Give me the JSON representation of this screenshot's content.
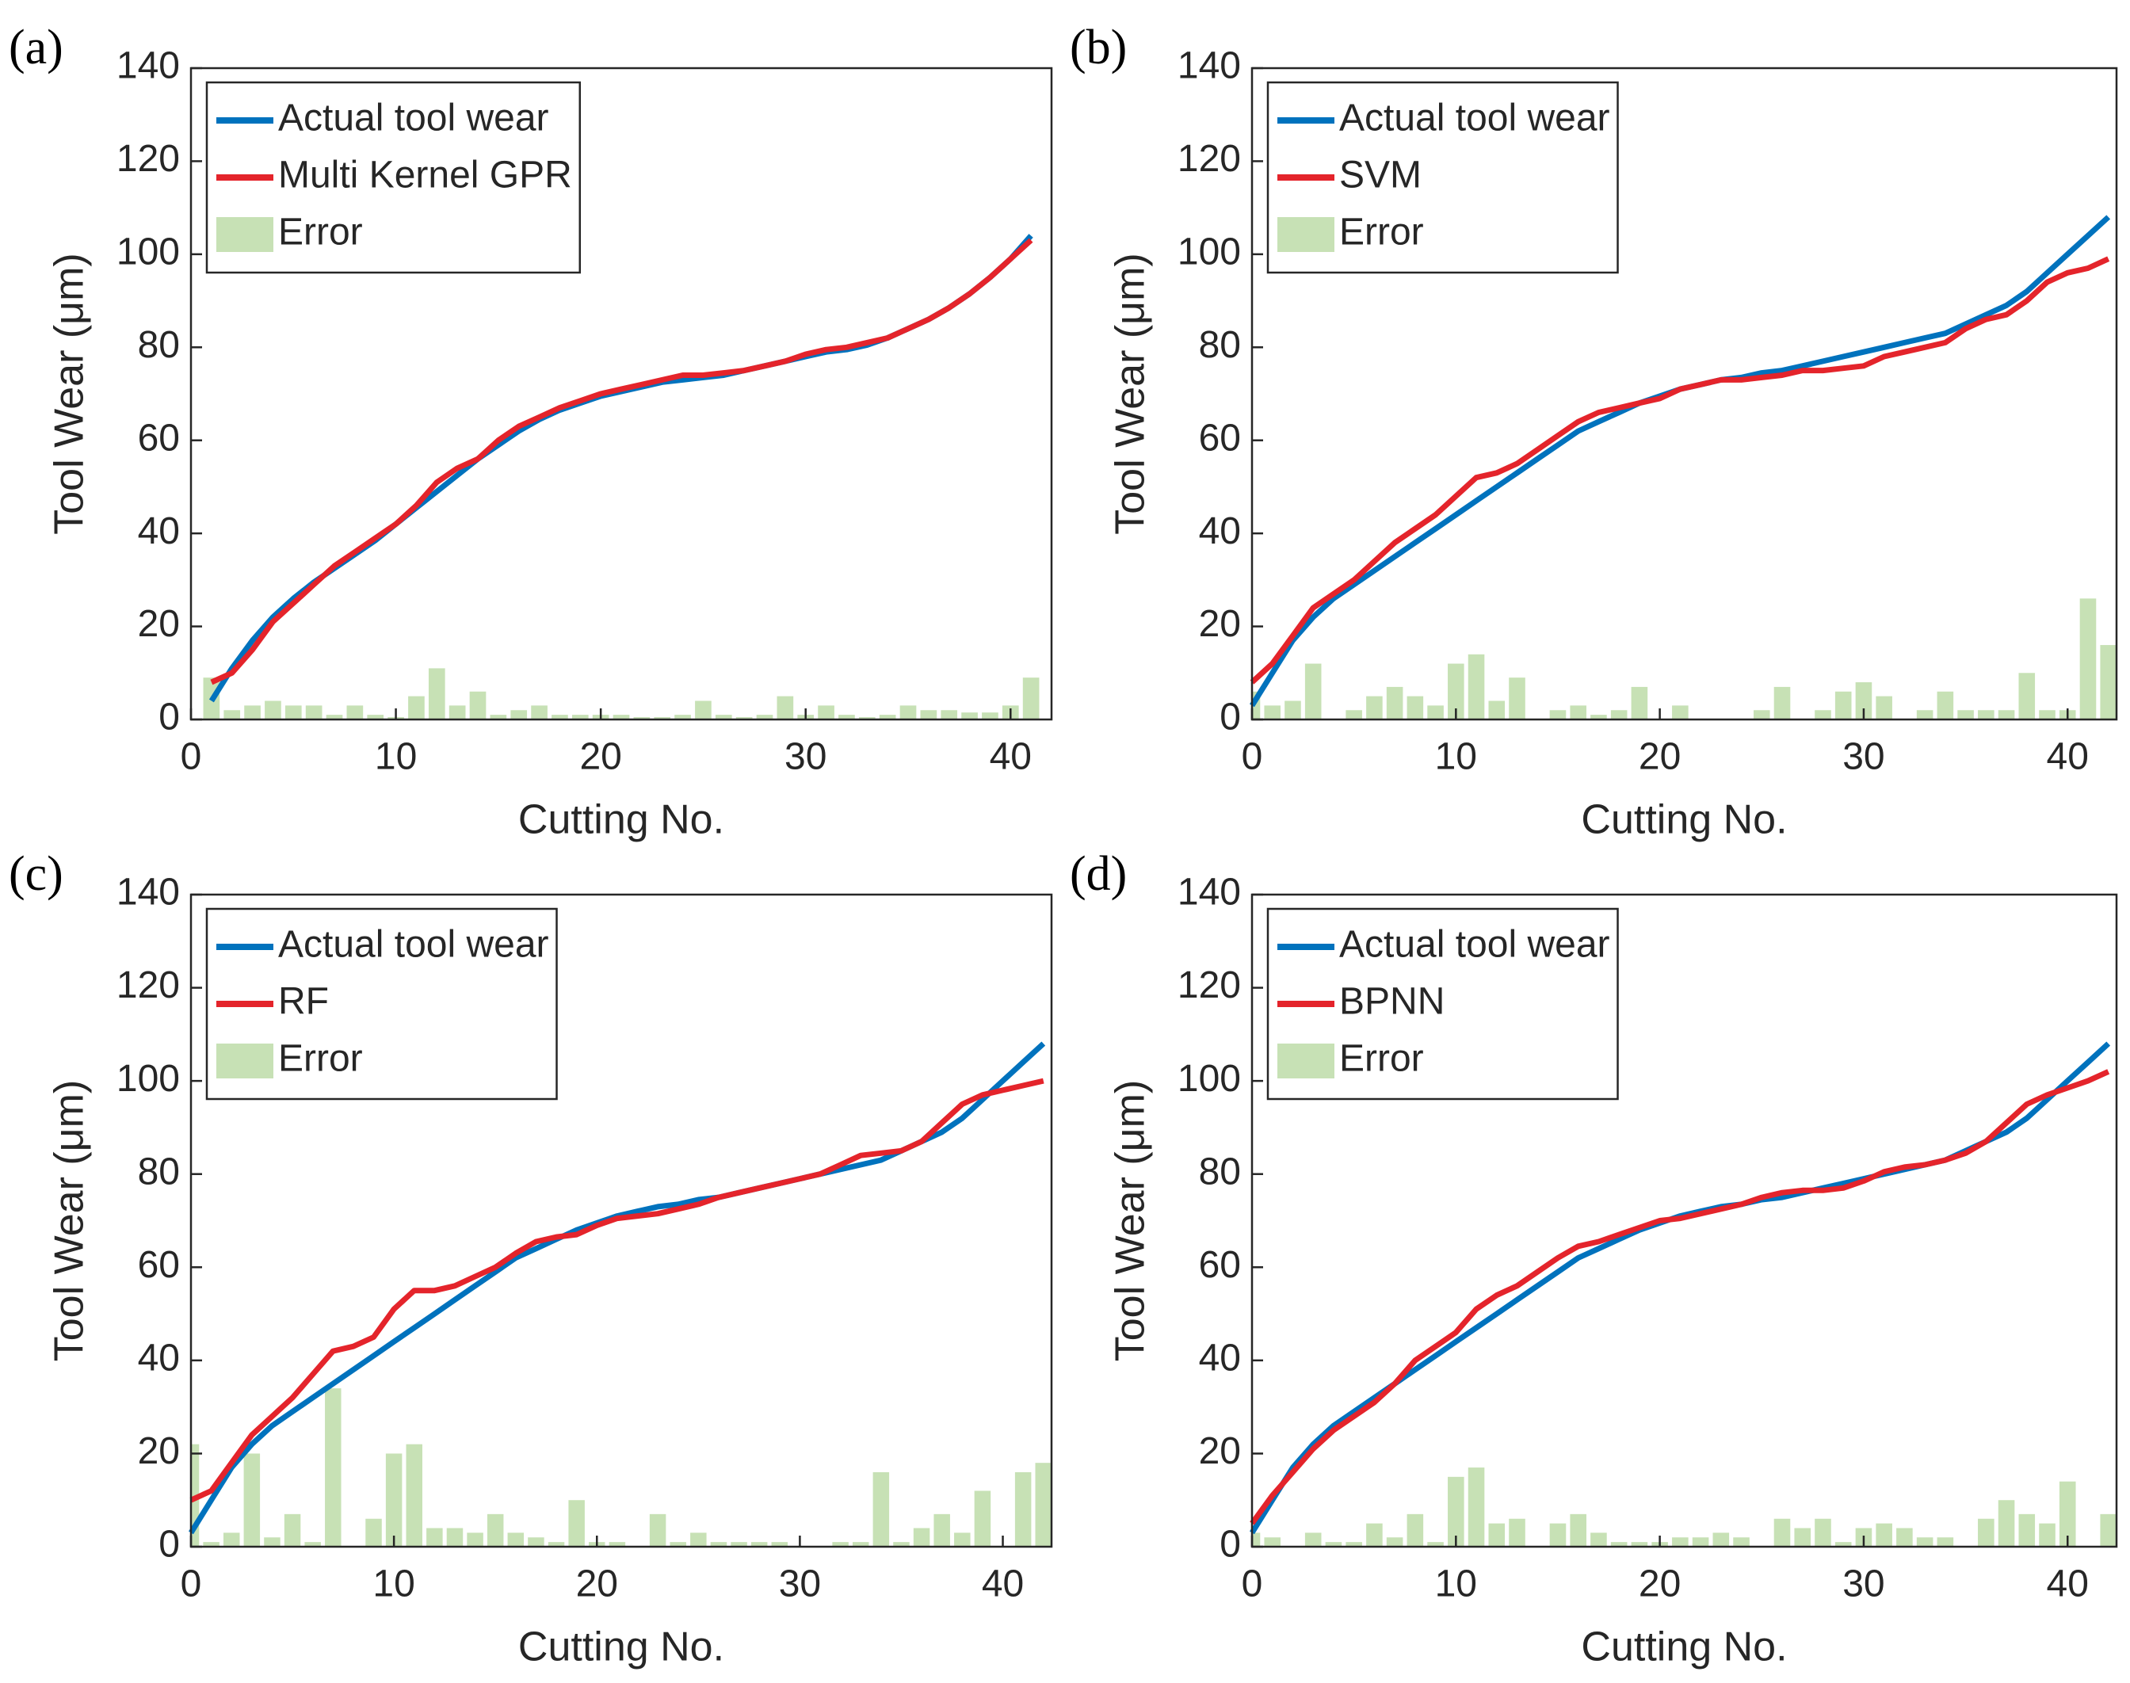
{
  "chart_data": [
    {
      "type": "combo",
      "panel": "(a)",
      "xlabel": "Cutting No.",
      "ylabel": "Tool Wear (μm)",
      "xlim": [
        0,
        42
      ],
      "ylim": [
        0,
        140
      ],
      "xticks": [
        0,
        10,
        20,
        30,
        40
      ],
      "yticks": [
        0,
        20,
        40,
        60,
        80,
        100,
        120,
        140
      ],
      "legend": "northwest",
      "x": [
        1,
        2,
        3,
        4,
        5,
        6,
        7,
        8,
        9,
        10,
        11,
        12,
        13,
        14,
        15,
        16,
        17,
        18,
        19,
        20,
        21,
        22,
        23,
        24,
        25,
        26,
        27,
        28,
        29,
        30,
        31,
        32,
        33,
        34,
        35,
        36,
        37,
        38,
        39,
        40,
        41
      ],
      "series": [
        {
          "name": "Actual tool wear",
          "color": "#0072bd",
          "kind": "line",
          "values": [
            4,
            11,
            17,
            22,
            26,
            29.5,
            32.5,
            35.5,
            38.5,
            42,
            45.5,
            49,
            52.5,
            56,
            59,
            62,
            64.5,
            66.5,
            68,
            69.5,
            70.5,
            71.5,
            72.5,
            73,
            73.5,
            74,
            75,
            76,
            77,
            78,
            79,
            79.5,
            80.5,
            82,
            84,
            86,
            88.5,
            91.5,
            95,
            99,
            104
          ]
        },
        {
          "name": "Multi Kernel GPR",
          "color": "#e4242b",
          "kind": "line",
          "values": [
            8,
            10,
            15,
            21,
            25,
            29,
            33,
            36,
            39,
            42,
            46,
            51,
            54,
            56,
            60,
            63,
            65,
            67,
            68.5,
            70,
            71,
            72,
            73,
            74,
            74,
            74.5,
            75,
            76,
            77,
            78.5,
            79.5,
            80,
            81,
            82,
            84,
            86,
            88.5,
            91.5,
            95,
            99,
            103
          ]
        },
        {
          "name": "Error",
          "color": "#c7e1b5",
          "kind": "bar",
          "values": [
            9,
            2,
            3,
            4,
            3,
            3,
            1,
            3,
            1,
            0.5,
            5,
            11,
            3,
            6,
            1,
            2,
            3,
            1,
            1,
            1,
            1,
            0.5,
            0.5,
            1,
            4,
            1,
            0.5,
            1,
            5,
            1,
            3,
            1,
            0.5,
            1,
            3,
            2,
            2,
            1.5,
            1.5,
            3,
            9
          ]
        }
      ]
    },
    {
      "type": "combo",
      "panel": "(b)",
      "xlabel": "Cutting No.",
      "ylabel": "Tool Wear (μm)",
      "xlim": [
        0,
        42.4
      ],
      "ylim": [
        0,
        140
      ],
      "xticks": [
        0,
        10,
        20,
        30,
        40
      ],
      "yticks": [
        0,
        20,
        40,
        60,
        80,
        100,
        120,
        140
      ],
      "legend": "northwest",
      "x": [
        0,
        1,
        2,
        3,
        4,
        5,
        6,
        7,
        8,
        9,
        10,
        11,
        12,
        13,
        14,
        15,
        16,
        17,
        18,
        19,
        20,
        21,
        22,
        23,
        24,
        25,
        26,
        27,
        28,
        29,
        30,
        31,
        32,
        33,
        34,
        35,
        36,
        37,
        38,
        39,
        40,
        41,
        42
      ],
      "series": [
        {
          "name": "Actual tool wear",
          "color": "#0072bd",
          "kind": "line",
          "values": [
            3,
            10,
            17,
            22,
            26,
            29,
            32,
            35,
            38,
            41,
            44,
            47,
            50,
            53,
            56,
            59,
            62,
            64,
            66,
            68,
            69.5,
            71,
            72,
            73,
            73.5,
            74.5,
            75,
            76,
            77,
            78,
            79,
            80,
            81,
            82,
            83,
            85,
            87,
            89,
            92,
            96,
            100,
            104,
            108
          ]
        },
        {
          "name": "SVM",
          "color": "#e4242b",
          "kind": "line",
          "values": [
            8,
            12,
            18,
            24,
            27,
            30,
            34,
            38,
            41,
            44,
            48,
            52,
            53,
            55,
            58,
            61,
            64,
            66,
            67,
            68,
            69,
            71,
            72,
            73,
            73,
            73.5,
            74,
            75,
            75,
            75.5,
            76,
            78,
            79,
            80,
            81,
            84,
            86,
            87,
            90,
            94,
            96,
            97,
            99
          ]
        },
        {
          "name": "Error",
          "color": "#c7e1b5",
          "kind": "bar",
          "values": [
            6,
            3,
            4,
            12,
            0,
            2,
            5,
            7,
            5,
            3,
            12,
            14,
            4,
            9,
            0,
            2,
            3,
            1,
            2,
            7,
            0,
            3,
            0,
            0,
            0,
            2,
            7,
            0,
            2,
            6,
            8,
            5,
            0,
            2,
            6,
            2,
            2,
            2,
            10,
            2,
            2,
            26,
            16
          ]
        }
      ]
    },
    {
      "type": "combo",
      "panel": "(c)",
      "xlabel": "Cutting No.",
      "ylabel": "Tool Wear (μm)",
      "xlim": [
        0,
        42.4
      ],
      "ylim": [
        0,
        140
      ],
      "xticks": [
        0,
        10,
        20,
        30,
        40
      ],
      "yticks": [
        0,
        20,
        40,
        60,
        80,
        100,
        120,
        140
      ],
      "legend": "northwest",
      "x": [
        0,
        1,
        2,
        3,
        4,
        5,
        6,
        7,
        8,
        9,
        10,
        11,
        12,
        13,
        14,
        15,
        16,
        17,
        18,
        19,
        20,
        21,
        22,
        23,
        24,
        25,
        26,
        27,
        28,
        29,
        30,
        31,
        32,
        33,
        34,
        35,
        36,
        37,
        38,
        39,
        40,
        41,
        42
      ],
      "series": [
        {
          "name": "Actual tool wear",
          "color": "#0072bd",
          "kind": "line",
          "values": [
            3,
            10,
            17,
            22,
            26,
            29,
            32,
            35,
            38,
            41,
            44,
            47,
            50,
            53,
            56,
            59,
            62,
            64,
            66,
            68,
            69.5,
            71,
            72,
            73,
            73.5,
            74.5,
            75,
            76,
            77,
            78,
            79,
            80,
            81,
            82,
            83,
            85,
            87,
            89,
            92,
            96,
            100,
            104,
            108
          ]
        },
        {
          "name": "RF",
          "color": "#e4242b",
          "kind": "line",
          "values": [
            10,
            12,
            18,
            24,
            28,
            32,
            37,
            42,
            43,
            45,
            51,
            55,
            55,
            56,
            58,
            60,
            63,
            65.5,
            66.5,
            67,
            69,
            70.5,
            71,
            71.5,
            72.5,
            73.5,
            75,
            76,
            77,
            78,
            79,
            80,
            82,
            84,
            84.5,
            85,
            87,
            91,
            95,
            97,
            98,
            99,
            100
          ]
        },
        {
          "name": "Error",
          "color": "#c7e1b5",
          "kind": "bar",
          "values": [
            22,
            1,
            3,
            20,
            2,
            7,
            1,
            34,
            0,
            6,
            20,
            22,
            4,
            4,
            3,
            7,
            3,
            2,
            1,
            10,
            1,
            1,
            0,
            7,
            1,
            3,
            1,
            1,
            1,
            1,
            0,
            0,
            1,
            1,
            16,
            1,
            4,
            7,
            3,
            12,
            0,
            16,
            18
          ]
        }
      ]
    },
    {
      "type": "combo",
      "panel": "(d)",
      "xlabel": "Cutting No.",
      "ylabel": "Tool Wear (μm)",
      "xlim": [
        0,
        42.4
      ],
      "ylim": [
        0,
        140
      ],
      "xticks": [
        0,
        10,
        20,
        30,
        40
      ],
      "yticks": [
        0,
        20,
        40,
        60,
        80,
        100,
        120,
        140
      ],
      "legend": "northwest",
      "x": [
        0,
        1,
        2,
        3,
        4,
        5,
        6,
        7,
        8,
        9,
        10,
        11,
        12,
        13,
        14,
        15,
        16,
        17,
        18,
        19,
        20,
        21,
        22,
        23,
        24,
        25,
        26,
        27,
        28,
        29,
        30,
        31,
        32,
        33,
        34,
        35,
        36,
        37,
        38,
        39,
        40,
        41,
        42
      ],
      "series": [
        {
          "name": "Actual tool wear",
          "color": "#0072bd",
          "kind": "line",
          "values": [
            3,
            10,
            17,
            22,
            26,
            29,
            32,
            35,
            38,
            41,
            44,
            47,
            50,
            53,
            56,
            59,
            62,
            64,
            66,
            68,
            69.5,
            71,
            72,
            73,
            73.5,
            74.5,
            75,
            76,
            77,
            78,
            79,
            80,
            81,
            82,
            83,
            85,
            87,
            89,
            92,
            96,
            100,
            104,
            108
          ]
        },
        {
          "name": "BPNN",
          "color": "#e4242b",
          "kind": "line",
          "values": [
            5,
            11,
            16,
            21,
            25,
            28,
            31,
            35,
            40,
            43,
            46,
            51,
            54,
            56,
            59,
            62,
            64.5,
            65.5,
            67,
            68.5,
            70,
            70.5,
            71.5,
            72.5,
            73.5,
            75,
            76,
            76.5,
            76.5,
            77,
            78.5,
            80.5,
            81.5,
            82,
            83,
            84.5,
            87,
            91,
            95,
            97,
            98.5,
            100,
            102
          ]
        },
        {
          "name": "Error",
          "color": "#c7e1b5",
          "kind": "bar",
          "values": [
            3,
            2,
            0,
            3,
            1,
            1,
            5,
            2,
            7,
            1,
            15,
            17,
            5,
            6,
            0,
            5,
            7,
            3,
            1,
            1,
            1,
            2,
            2,
            3,
            2,
            0,
            6,
            4,
            6,
            1,
            4,
            5,
            4,
            2,
            2,
            0,
            6,
            10,
            7,
            5,
            14,
            0,
            7
          ]
        }
      ]
    }
  ]
}
